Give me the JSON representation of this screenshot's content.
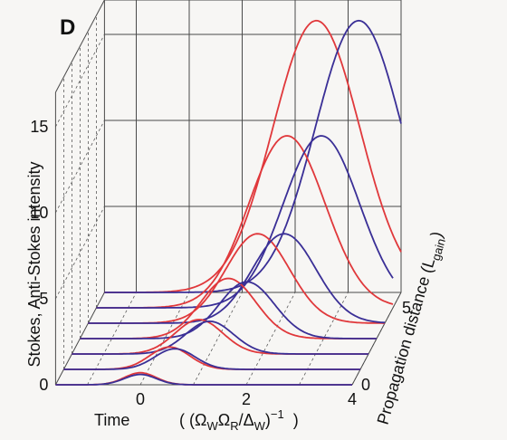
{
  "panel_label": "D",
  "chart_data": {
    "type": "line",
    "subtype": "3d-waterfall",
    "ylabel": "Stokes, Anti-Stokes intensity",
    "xlabel_main": "Time",
    "xlabel_units": "( (Ω",
    "xlabel_sub1": "W",
    "xlabel_omega2": "Ω",
    "xlabel_sub2": "R",
    "xlabel_slash": "/Δ",
    "xlabel_sub3": "W",
    "xlabel_close": ")",
    "xlabel_exp": "−1",
    "xlabel_end": ")",
    "zlabel_main": "Propagation distance (L",
    "zlabel_sub": "gain",
    "zlabel_close": ")",
    "xticks": [
      "0",
      "2",
      "4"
    ],
    "yticks": [
      "0",
      "5",
      "10",
      "15"
    ],
    "zticks": [
      "0",
      "5"
    ],
    "xlim": [
      -1.6,
      4
    ],
    "ylim": [
      0,
      17
    ],
    "zlim": [
      0,
      6
    ],
    "z_values": [
      0,
      1,
      2,
      3,
      4,
      5,
      6
    ],
    "series": [
      {
        "name": "",
        "color": "#e0383b",
        "peak_time": [
          0.0,
          0.4,
          0.8,
          1.2,
          1.6,
          2.0,
          2.4
        ],
        "peak_intensity": [
          0.7,
          1.3,
          2.0,
          3.5,
          5.2,
          10.0,
          15.8
        ],
        "width": [
          0.3,
          0.38,
          0.45,
          0.52,
          0.6,
          0.72,
          0.82
        ]
      },
      {
        "name": "",
        "color": "#3a2f96",
        "peak_time": [
          0.0,
          0.5,
          1.0,
          1.55,
          2.1,
          2.65,
          3.2
        ],
        "peak_intensity": [
          0.6,
          1.2,
          1.9,
          3.3,
          5.2,
          10.0,
          15.8
        ],
        "width": [
          0.3,
          0.38,
          0.45,
          0.52,
          0.6,
          0.72,
          0.82
        ]
      }
    ],
    "grid": true,
    "legend": "none"
  }
}
